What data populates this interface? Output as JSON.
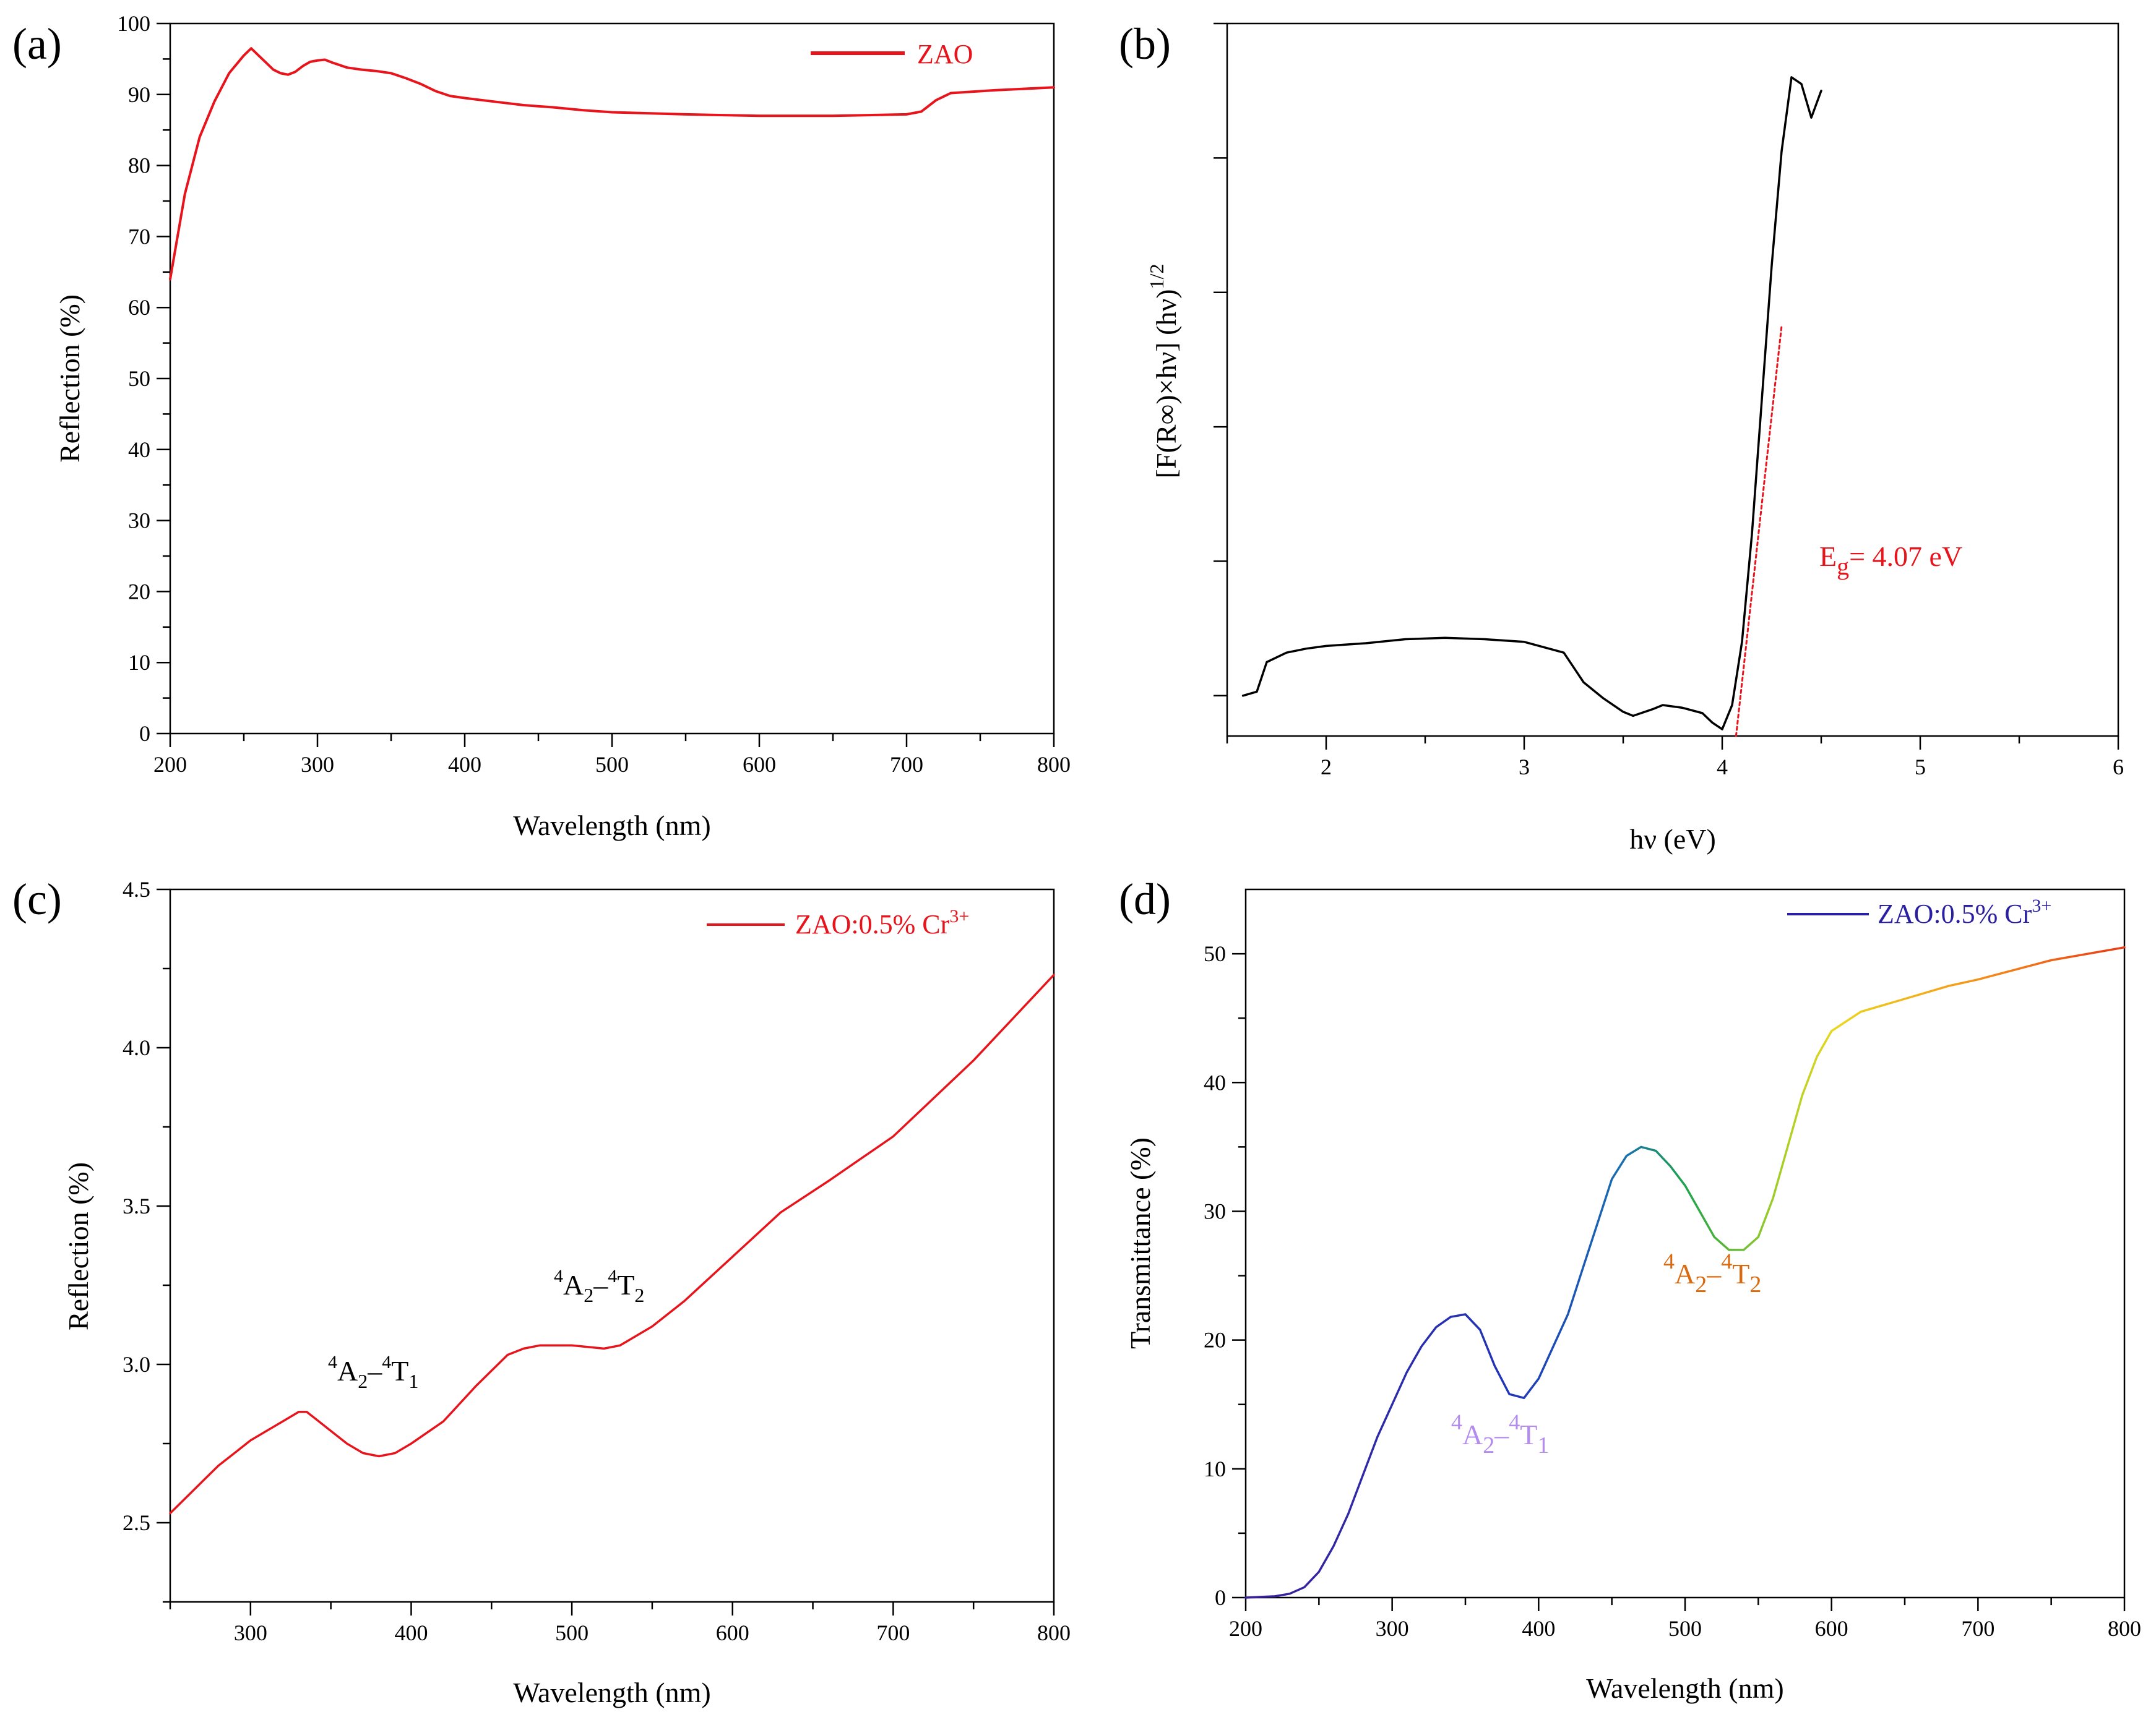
{
  "chart_data": [
    {
      "panel": "(a)",
      "type": "line",
      "title": "",
      "xlabel": "Wavelength (nm)",
      "ylabel": "Reflection (%)",
      "xlim": [
        200,
        800
      ],
      "ylim": [
        0,
        100
      ],
      "xticks": [
        200,
        300,
        400,
        500,
        600,
        700,
        800
      ],
      "yticks": [
        0,
        10,
        20,
        30,
        40,
        50,
        60,
        70,
        80,
        90,
        100
      ],
      "legend": "top-right",
      "series": [
        {
          "name": "ZAO",
          "color": "#e8141c",
          "x": [
            200,
            205,
            210,
            220,
            230,
            240,
            250,
            255,
            260,
            265,
            270,
            275,
            280,
            285,
            290,
            295,
            300,
            305,
            310,
            320,
            330,
            340,
            350,
            360,
            370,
            380,
            390,
            400,
            420,
            440,
            460,
            480,
            500,
            550,
            600,
            650,
            700,
            710,
            720,
            730,
            760,
            800
          ],
          "y": [
            64,
            70,
            76,
            84,
            89,
            93,
            95.5,
            96.5,
            95.5,
            94.5,
            93.5,
            93,
            92.8,
            93.2,
            94,
            94.6,
            94.8,
            94.9,
            94.5,
            93.8,
            93.5,
            93.3,
            93,
            92.3,
            91.5,
            90.5,
            89.8,
            89.5,
            89,
            88.5,
            88.2,
            87.8,
            87.5,
            87.2,
            87,
            87,
            87.2,
            87.6,
            89.2,
            90.2,
            90.6,
            91
          ]
        }
      ]
    },
    {
      "panel": "(b)",
      "type": "line",
      "title": "",
      "xlabel": "hν (eV)",
      "ylabel": "[F(R∞)×hν] (hν)^1/2",
      "ylabel_main": "[F(R∞)×hν] (hν)",
      "ylabel_sup": "1/2",
      "xlim": [
        1.5,
        6
      ],
      "ylim": [
        0,
        5.3
      ],
      "xticks": [
        2,
        3,
        4,
        5,
        6
      ],
      "yticks": [
        0.3,
        1.3,
        2.3,
        3.3,
        4.3,
        5.3
      ],
      "show_ytick_labels": false,
      "annotation": {
        "main": "E",
        "sub": "g",
        "rest": "= 4.07 eV",
        "color": "#e8141c"
      },
      "series": [
        {
          "name": "data",
          "color": "#000000",
          "x": [
            1.58,
            1.65,
            1.7,
            1.8,
            1.9,
            2.0,
            2.2,
            2.4,
            2.6,
            2.8,
            3.0,
            3.2,
            3.3,
            3.4,
            3.5,
            3.55,
            3.65,
            3.7,
            3.8,
            3.9,
            3.95,
            4.0,
            4.05,
            4.1,
            4.15,
            4.2,
            4.25,
            4.3,
            4.35,
            4.4,
            4.45,
            4.5
          ],
          "y": [
            0.3,
            0.33,
            0.55,
            0.62,
            0.65,
            0.67,
            0.69,
            0.72,
            0.73,
            0.72,
            0.7,
            0.62,
            0.4,
            0.28,
            0.18,
            0.15,
            0.2,
            0.23,
            0.21,
            0.17,
            0.1,
            0.05,
            0.23,
            0.7,
            1.5,
            2.5,
            3.5,
            4.35,
            4.9,
            4.85,
            4.6,
            4.8
          ]
        },
        {
          "name": "linear fit",
          "color": "#e8141c",
          "dashed": true,
          "x": [
            4.07,
            4.3
          ],
          "y": [
            0.0,
            3.05
          ]
        }
      ]
    },
    {
      "panel": "(c)",
      "type": "line",
      "title": "",
      "xlabel": "Wavelength (nm)",
      "ylabel": "Reflection (%)",
      "xlim": [
        250,
        800
      ],
      "ylim": [
        2.25,
        4.5
      ],
      "xticks": [
        300,
        400,
        500,
        600,
        700,
        800
      ],
      "yticks": [
        2.5,
        3.0,
        3.5,
        4.0,
        4.5
      ],
      "ytick_labels": [
        "2.5",
        "3.0",
        "3.5",
        "4.0",
        "4.5"
      ],
      "legend": "top-right",
      "series": [
        {
          "name": "ZAO:0.5% Cr3+",
          "color": "#e8141c",
          "x": [
            250,
            260,
            270,
            280,
            290,
            300,
            310,
            320,
            330,
            335,
            340,
            350,
            360,
            370,
            380,
            390,
            400,
            420,
            440,
            460,
            470,
            480,
            500,
            520,
            530,
            550,
            570,
            600,
            630,
            660,
            700,
            750,
            800
          ],
          "y": [
            2.53,
            2.58,
            2.63,
            2.68,
            2.72,
            2.76,
            2.79,
            2.82,
            2.85,
            2.85,
            2.83,
            2.79,
            2.75,
            2.72,
            2.71,
            2.72,
            2.75,
            2.82,
            2.93,
            3.03,
            3.05,
            3.06,
            3.06,
            3.05,
            3.06,
            3.12,
            3.2,
            3.34,
            3.48,
            3.58,
            3.72,
            3.96,
            4.23
          ]
        }
      ],
      "annotations": [
        {
          "text": "4A2–4T1",
          "pre_sup": "4",
          "a": "A",
          "a_sub": "2",
          "dash": "–",
          "b_sup": "4",
          "b": "T",
          "b_sub": "1",
          "color": "#000000"
        },
        {
          "text": "4A2–4T2",
          "pre_sup": "4",
          "a": "A",
          "a_sub": "2",
          "dash": "–",
          "b_sup": "4",
          "b": "T",
          "b_sub": "2",
          "color": "#000000"
        }
      ]
    },
    {
      "panel": "(d)",
      "type": "line",
      "title": "",
      "xlabel": "Wavelength (nm)",
      "ylabel": "Transmittance (%)",
      "xlim": [
        200,
        800
      ],
      "ylim": [
        0,
        55
      ],
      "xticks": [
        200,
        300,
        400,
        500,
        600,
        700,
        800
      ],
      "yticks": [
        0,
        10,
        20,
        30,
        40,
        50
      ],
      "legend": "top-right",
      "colormap": "spectral gradient (violet → blue → green → yellow → orange → red)",
      "series": [
        {
          "name": "ZAO:0.5% Cr3+",
          "color": "#2a1fa0",
          "x": [
            200,
            220,
            230,
            240,
            250,
            260,
            270,
            280,
            290,
            300,
            310,
            320,
            330,
            340,
            350,
            360,
            370,
            380,
            390,
            400,
            410,
            420,
            430,
            440,
            450,
            460,
            470,
            480,
            490,
            500,
            510,
            520,
            530,
            540,
            550,
            560,
            570,
            580,
            590,
            600,
            620,
            650,
            680,
            700,
            750,
            800
          ],
          "y": [
            0,
            0.1,
            0.3,
            0.8,
            2,
            4,
            6.5,
            9.5,
            12.5,
            15,
            17.5,
            19.5,
            21,
            21.8,
            22,
            20.8,
            18,
            15.8,
            15.5,
            17,
            19.5,
            22,
            25.5,
            29,
            32.5,
            34.3,
            35,
            34.7,
            33.5,
            32,
            30,
            28,
            27,
            27,
            28,
            31,
            35,
            39,
            42,
            44,
            45.5,
            46.5,
            47.5,
            48,
            49.5,
            50.5
          ]
        }
      ],
      "annotations": [
        {
          "text": "4A2–4T1",
          "pre_sup": "4",
          "a": "A",
          "a_sub": "2",
          "dash": "–",
          "b_sup": "4",
          "b": "T",
          "b_sub": "1",
          "color": "#b48cf0"
        },
        {
          "text": "4A2–4T2",
          "pre_sup": "4",
          "a": "A",
          "a_sub": "2",
          "dash": "–",
          "b_sup": "4",
          "b": "T",
          "b_sub": "2",
          "color": "#d96a10"
        }
      ]
    }
  ],
  "legend_labels": {
    "a": "ZAO",
    "c_main": "ZAO:0.5% Cr",
    "c_sup": "3+",
    "d_main": "ZAO:0.5% Cr",
    "d_sup": "3+"
  },
  "colors": {
    "red": "#e8141c",
    "black": "#000000",
    "navy": "#2a1fa0"
  }
}
